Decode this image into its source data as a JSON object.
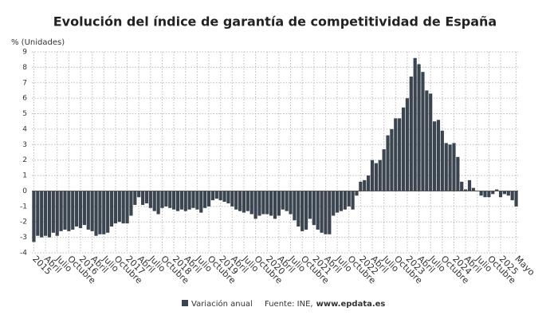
{
  "chart_data": {
    "type": "bar",
    "title": "Evolución del índice de garantía de competitividad de España",
    "y_label": "% (Unidades)",
    "categories": [
      "2015",
      null,
      null,
      "Abril",
      null,
      null,
      "Julio",
      null,
      null,
      "Octubre",
      null,
      null,
      "2016",
      null,
      null,
      "Abril",
      null,
      null,
      "Julio",
      null,
      null,
      "Octubre",
      null,
      null,
      "2017",
      null,
      null,
      "Abril",
      null,
      null,
      "Julio",
      null,
      null,
      "Octubre",
      null,
      null,
      "2018",
      null,
      null,
      "Abril",
      null,
      null,
      "Julio",
      null,
      null,
      "Octubre",
      null,
      null,
      "2019",
      null,
      null,
      "Abril",
      null,
      null,
      "Julio",
      null,
      null,
      "Octubre",
      null,
      null,
      "2020",
      null,
      null,
      "Abril",
      null,
      null,
      "Julio",
      null,
      null,
      "Octubre",
      null,
      null,
      "2021",
      null,
      null,
      "Abril",
      null,
      null,
      "Julio",
      null,
      null,
      "Octubre",
      null,
      null,
      "2022",
      null,
      null,
      "Abril",
      null,
      null,
      "Julio",
      null,
      null,
      "Octubre",
      null,
      null,
      "2023",
      null,
      null,
      "Abril",
      null,
      null,
      "Julio",
      null,
      null,
      "Octubre",
      null,
      null,
      "2024",
      null,
      null,
      "Abril",
      null,
      null,
      "Julio",
      null,
      null,
      "Octubre",
      null,
      null,
      "2025",
      null,
      null,
      null,
      "Mayo"
    ],
    "series": [
      {
        "name": "Variación anual",
        "color": "#3a4550",
        "values": [
          -3.3,
          -2.9,
          -3.0,
          -2.9,
          -3.0,
          -2.7,
          -2.9,
          -2.6,
          -2.5,
          -2.6,
          -2.5,
          -2.3,
          -2.4,
          -2.2,
          -2.5,
          -2.6,
          -2.9,
          -2.8,
          -2.8,
          -2.7,
          -2.3,
          -2.1,
          -2.0,
          -2.1,
          -2.1,
          -1.6,
          -0.9,
          -0.4,
          -0.9,
          -0.8,
          -1.1,
          -1.3,
          -1.5,
          -1.1,
          -1.0,
          -1.1,
          -1.2,
          -1.3,
          -1.2,
          -1.3,
          -1.2,
          -1.1,
          -1.2,
          -1.4,
          -1.1,
          -1.0,
          -0.6,
          -0.5,
          -0.6,
          -0.7,
          -0.8,
          -1.0,
          -1.2,
          -1.3,
          -1.4,
          -1.3,
          -1.5,
          -1.8,
          -1.6,
          -1.5,
          -1.5,
          -1.6,
          -1.8,
          -1.6,
          -1.2,
          -1.3,
          -1.5,
          -1.9,
          -2.3,
          -2.6,
          -2.5,
          -1.8,
          -2.2,
          -2.5,
          -2.7,
          -2.8,
          -2.8,
          -1.6,
          -1.4,
          -1.3,
          -1.2,
          -1.0,
          -1.2,
          -0.3,
          0.6,
          0.7,
          1.0,
          2.0,
          1.8,
          2.0,
          2.7,
          3.6,
          4.0,
          4.7,
          4.7,
          5.4,
          6.0,
          7.4,
          8.6,
          8.2,
          7.7,
          6.5,
          6.3,
          4.5,
          4.6,
          3.9,
          3.1,
          3.0,
          3.1,
          2.2,
          0.6,
          0.1,
          0.7,
          0.2,
          0.0,
          -0.3,
          -0.4,
          -0.4,
          -0.2,
          0.1,
          -0.4,
          -0.2,
          -0.3,
          -0.6,
          -1.0
        ]
      }
    ],
    "ylim": [
      -4,
      9
    ],
    "yticks": [
      -4,
      -3,
      -2,
      -1,
      0,
      1,
      2,
      3,
      4,
      5,
      6,
      7,
      8,
      9
    ],
    "grid": true,
    "source_label": "Fuente: INE,",
    "source_site": "www.epdata.es"
  }
}
